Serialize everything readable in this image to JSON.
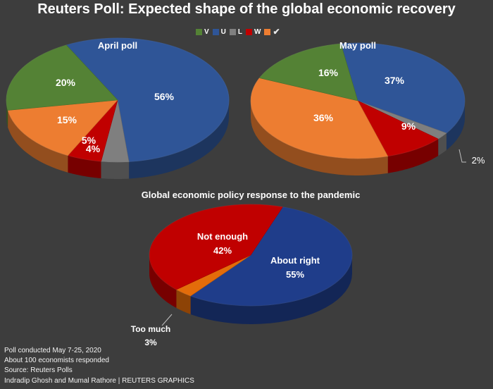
{
  "title": "Reuters Poll: Expected shape of the global economic recovery",
  "legend": [
    {
      "label": "V",
      "color": "#548235"
    },
    {
      "label": "U",
      "color": "#2f5597"
    },
    {
      "label": "L",
      "color": "#7f7f7f"
    },
    {
      "label": "W",
      "color": "#c00000"
    },
    {
      "label": "",
      "color": "#ed7d31"
    }
  ],
  "legend_check_icon": "✔",
  "colors": {
    "V": "#548235",
    "U": "#2f5597",
    "L": "#7f7f7f",
    "W": "#c00000",
    "Check": "#ed7d31",
    "about_right": "#1f3d8a",
    "not_enough": "#c00000",
    "too_much": "#e36c0a"
  },
  "chart_data": [
    {
      "type": "pie",
      "title": "April poll",
      "slices": [
        {
          "label": "U",
          "value": 56,
          "text": "56%"
        },
        {
          "label": "L",
          "value": 4,
          "text": "4%"
        },
        {
          "label": "W",
          "value": 5,
          "text": "5%"
        },
        {
          "label": "Check",
          "value": 15,
          "text": "15%"
        },
        {
          "label": "V",
          "value": 20,
          "text": "20%"
        }
      ]
    },
    {
      "type": "pie",
      "title": "May poll",
      "slices": [
        {
          "label": "U",
          "value": 37,
          "text": "37%"
        },
        {
          "label": "L",
          "value": 2,
          "text": "2%"
        },
        {
          "label": "W",
          "value": 9,
          "text": "9%"
        },
        {
          "label": "Check",
          "value": 36,
          "text": "36%"
        },
        {
          "label": "V",
          "value": 16,
          "text": "16%"
        }
      ]
    },
    {
      "type": "pie",
      "title": "Global economic policy response to the pandemic",
      "slices": [
        {
          "label": "About right",
          "value": 55,
          "text": "55%",
          "key": "about_right"
        },
        {
          "label": "Too much",
          "value": 3,
          "text": "3%",
          "key": "too_much"
        },
        {
          "label": "Not enough",
          "value": 42,
          "text": "42%",
          "key": "not_enough"
        }
      ]
    }
  ],
  "footer": {
    "line1": "Poll conducted May 7-25, 2020",
    "line2": "About 100 economists responded",
    "line3": "Source: Reuters Polls",
    "line4": "Indradip Ghosh and Mumal Rathore | REUTERS GRAPHICS"
  }
}
